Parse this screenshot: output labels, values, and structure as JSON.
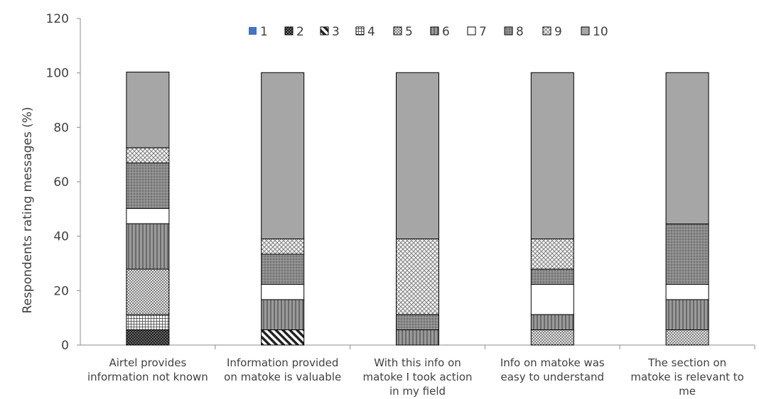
{
  "chart_data": {
    "type": "bar",
    "stacked": true,
    "ylabel": "Respondents  rating messages (%)",
    "ylim": [
      0,
      120
    ],
    "yticks": [
      0,
      20,
      40,
      60,
      80,
      100,
      120
    ],
    "grid": false,
    "legend_position": "top",
    "categories": [
      [
        "Airtel provides",
        "information not known"
      ],
      [
        "Information provided",
        "on matoke is valuable"
      ],
      [
        "With this info on",
        "matoke I took action",
        "in my field"
      ],
      [
        "Info on matoke was",
        "easy to understand"
      ],
      [
        "The section on",
        "matoke is relevant to",
        "me"
      ]
    ],
    "series": [
      {
        "name": "1",
        "values": [
          0,
          0,
          0,
          0,
          0
        ],
        "pattern": "solid-blue"
      },
      {
        "name": "2",
        "values": [
          5.6,
          0,
          0,
          0,
          0
        ],
        "pattern": "dark-check"
      },
      {
        "name": "3",
        "values": [
          0,
          5.6,
          0,
          0,
          0
        ],
        "pattern": "diagonal"
      },
      {
        "name": "4",
        "values": [
          5.6,
          0,
          0,
          0,
          0
        ],
        "pattern": "grid"
      },
      {
        "name": "5",
        "values": [
          16.7,
          0,
          0,
          5.6,
          5.6
        ],
        "pattern": "dots"
      },
      {
        "name": "6",
        "values": [
          16.7,
          11.1,
          5.6,
          5.6,
          11.1
        ],
        "pattern": "vertical"
      },
      {
        "name": "7",
        "values": [
          5.6,
          5.6,
          0,
          11.1,
          5.6
        ],
        "pattern": "white"
      },
      {
        "name": "8",
        "values": [
          16.7,
          11.1,
          5.6,
          5.6,
          22.2
        ],
        "pattern": "dark-dots"
      },
      {
        "name": "9",
        "values": [
          5.6,
          5.6,
          27.8,
          11.1,
          0
        ],
        "pattern": "crosshatch"
      },
      {
        "name": "10",
        "values": [
          27.8,
          61.1,
          61.1,
          61.1,
          55.6
        ],
        "pattern": "solid-gray"
      }
    ]
  }
}
